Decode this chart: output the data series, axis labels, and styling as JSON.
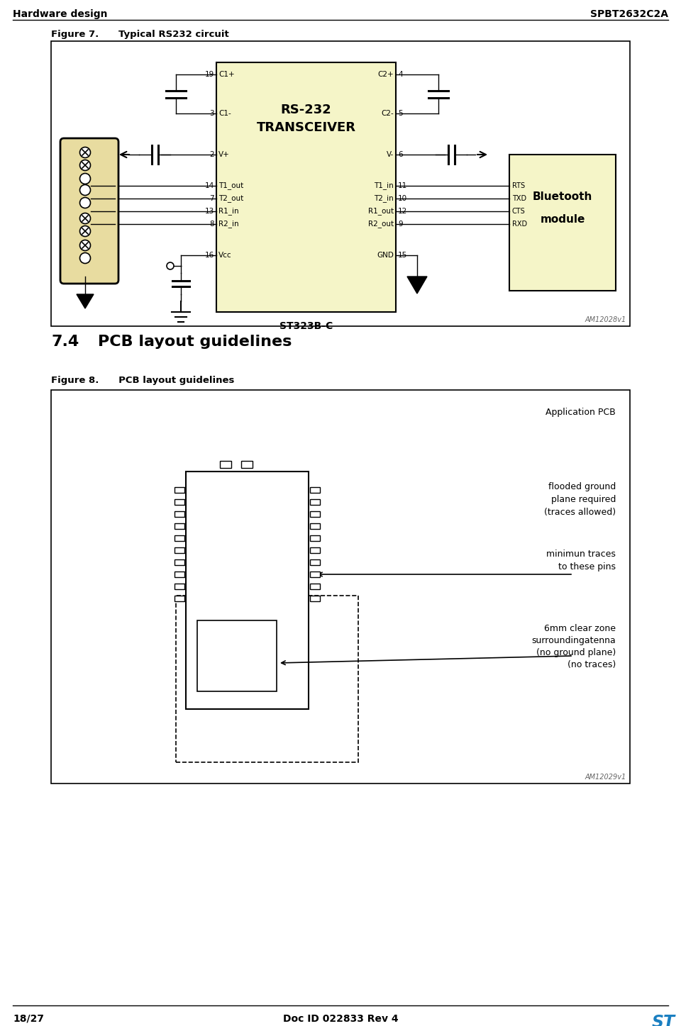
{
  "page_width": 9.6,
  "page_height": 14.47,
  "dpi": 100,
  "bg": "#ffffff",
  "header_left": "Hardware design",
  "header_right": "SPBT2632C2A",
  "footer_left": "18/27",
  "footer_center": "Doc ID 022833 Rev 4",
  "fig7_title": "Figure 7.      Typical RS232 circuit",
  "fig8_title": "Figure 8.      PCB layout guidelines",
  "sec_num": "7.4",
  "sec_name": "PCB layout guidelines",
  "ic_fill": "#f5f5c8",
  "bt_fill": "#f5f5c8",
  "db9_fill": "#e8dca0",
  "rs232_l1": "RS-232",
  "rs232_l2": "TRANSCEIVER",
  "ic_label": "ST323B-C",
  "bt_l1": "Bluetooth",
  "bt_l2": "module",
  "am1": "AM12028v1",
  "am2": "AM12029v1",
  "app_pcb": "Application PCB",
  "flood_txt": "flooded ground\nplane required\n(traces allowed)",
  "min_txt": "minimun traces\nto these pins",
  "clear_txt": "6mm clear zone\nsurroundingatenna\n(no ground plane)\n(no traces)"
}
